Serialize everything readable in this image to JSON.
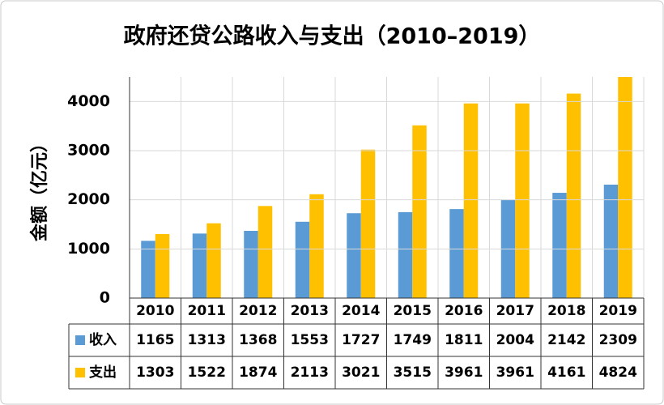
{
  "chart_data": {
    "type": "bar",
    "title": "政府还贷公路收入与支出（2010–2019）",
    "y_label": "金额（亿元）",
    "categories": [
      "2010",
      "2011",
      "2012",
      "2013",
      "2014",
      "2015",
      "2016",
      "2017",
      "2018",
      "2019"
    ],
    "series": [
      {
        "name": "收入",
        "color": "#5b9bd5",
        "values": [
          1165,
          1313,
          1368,
          1553,
          1727,
          1749,
          1811,
          2004,
          2142,
          2309
        ]
      },
      {
        "name": "支出",
        "color": "#ffc000",
        "values": [
          1303,
          1522,
          1874,
          2113,
          3021,
          3515,
          3961,
          3961,
          4161,
          4824
        ]
      }
    ],
    "ylim": [
      0,
      4500
    ],
    "yticks": [
      0,
      1000,
      2000,
      3000,
      4000
    ],
    "grid": true
  }
}
